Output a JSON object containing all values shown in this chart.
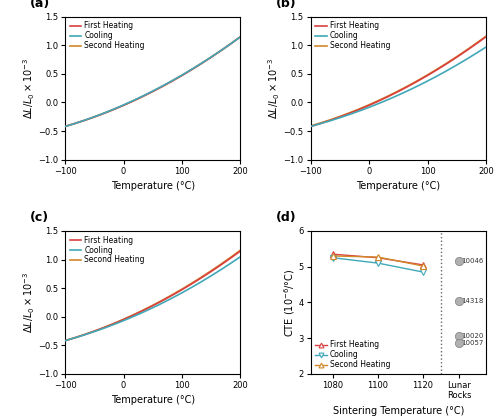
{
  "colors": {
    "first_heating": "#d94040",
    "cooling": "#40a8b8",
    "second_heating": "#d08828"
  },
  "xlim_abc": [
    -100,
    200
  ],
  "ylim_abc": [
    -1.0,
    1.5
  ],
  "yticks_abc": [
    -1.0,
    -0.5,
    0.0,
    0.5,
    1.0,
    1.5
  ],
  "xticks_abc": [
    -100,
    0,
    100,
    200
  ],
  "curve_a": 7.67e-06,
  "curve_b": 0.004467,
  "curve_c": -0.05,
  "panel_d": {
    "sintering_temps": [
      1080,
      1100,
      1120
    ],
    "first_heating_cte": [
      5.35,
      5.25,
      5.05
    ],
    "cooling_cte": [
      5.25,
      5.1,
      4.85
    ],
    "second_heating_cte": [
      5.3,
      5.27,
      5.02
    ],
    "lunar_rocks": [
      {
        "name": "10046",
        "cte": 5.15
      },
      {
        "name": "14318",
        "cte": 4.05
      },
      {
        "name": "10020",
        "cte": 3.05
      },
      {
        "name": "10057",
        "cte": 2.85
      }
    ]
  }
}
